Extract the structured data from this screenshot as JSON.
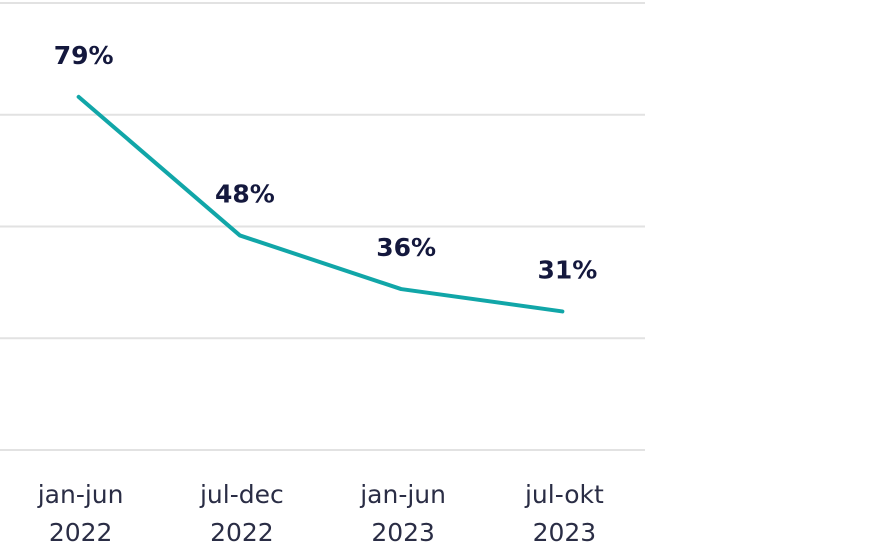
{
  "chart_data": {
    "type": "line",
    "title": "",
    "xlabel": "",
    "ylabel": "",
    "categories": [
      [
        "jan-jun",
        "2022"
      ],
      [
        "jul-dec",
        "2022"
      ],
      [
        "jan-jun",
        "2023"
      ],
      [
        "jul-okt",
        "2023"
      ]
    ],
    "values": [
      79,
      48,
      36,
      31
    ],
    "data_labels": [
      "79%",
      "48%",
      "36%",
      "31%"
    ],
    "ylim": [
      0,
      100
    ],
    "yticks": [
      0,
      25,
      50,
      75,
      100
    ],
    "grid": true,
    "legend": "none",
    "colors": {
      "line": "#11a6a8",
      "label": "#14183d",
      "grid": "#e2e2e2"
    }
  }
}
